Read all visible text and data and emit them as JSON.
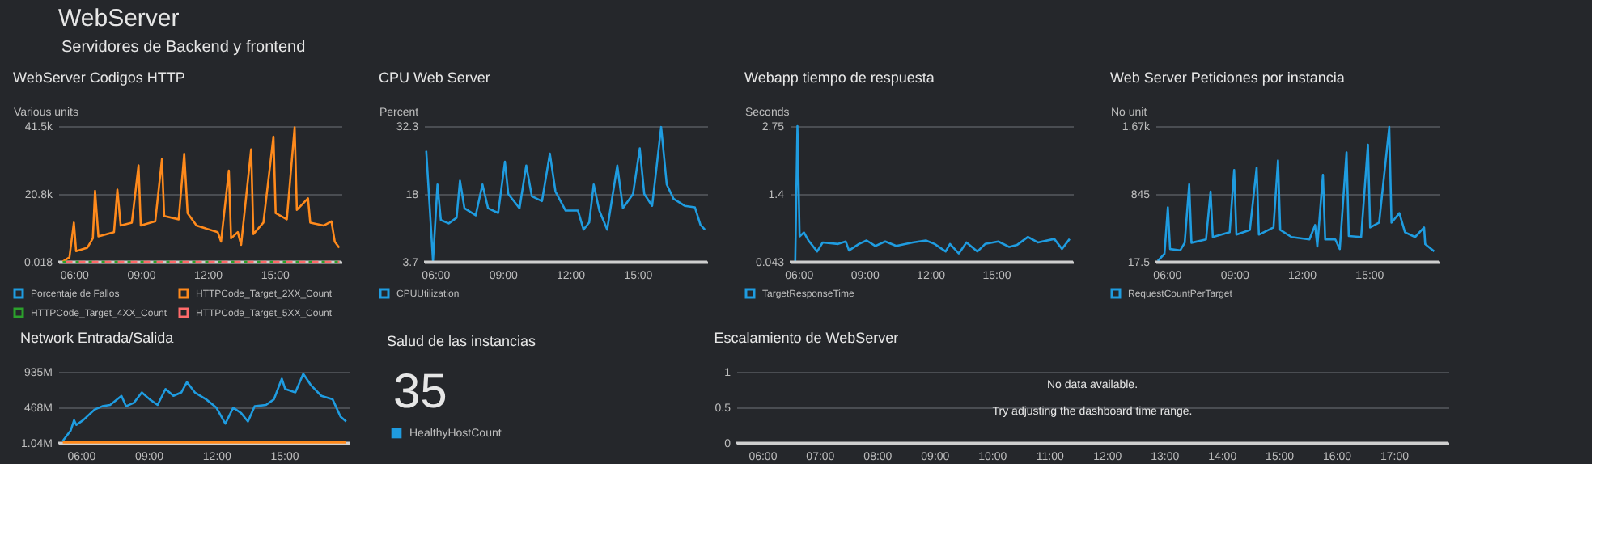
{
  "chart_data": [
    {
      "type": "other",
      "title": "WebServer",
      "subtitle": "Servidores de Backend y frontend"
    },
    {
      "type": "line",
      "title": "WebServer Codigos HTTP",
      "ylabel": "Various units",
      "legend": "bottom",
      "grid": "y",
      "xlim": [
        5.3,
        18.0
      ],
      "xticks": [
        {
          "value": 6,
          "label": "06:00"
        },
        {
          "value": 9,
          "label": "09:00"
        },
        {
          "value": 12,
          "label": "12:00"
        },
        {
          "value": 15,
          "label": "15:00"
        }
      ],
      "ylim": [
        0.018,
        41500
      ],
      "yticks": [
        0.018,
        {
          "value": 20800,
          "label": "20.8k"
        },
        {
          "value": 41500,
          "label": "41.5k"
        }
      ],
      "series": [
        {
          "name": "Porcentaje de Fallos",
          "color": "#1f9ce0"
        },
        {
          "name": "HTTPCode_Target_2XX_Count",
          "color": "#ff8a1c",
          "x": [
            5.5,
            5.8,
            6.0,
            6.1,
            6.6,
            6.85,
            6.95,
            7.1,
            7.8,
            7.95,
            8.1,
            8.6,
            8.9,
            9.0,
            9.65,
            9.95,
            10.05,
            10.7,
            10.95,
            11.1,
            11.5,
            12.45,
            12.6,
            12.95,
            13.05,
            13.35,
            13.5,
            13.95,
            14.05,
            14.5,
            14.95,
            15.05,
            15.55,
            15.9,
            16.0,
            16.5,
            16.6,
            17.2,
            17.55,
            17.7,
            17.9
          ],
          "values": [
            100,
            1400,
            12000,
            3300,
            4300,
            7200,
            21700,
            7800,
            9100,
            22100,
            11100,
            12000,
            29500,
            11100,
            12400,
            31400,
            14000,
            13000,
            33000,
            14900,
            11100,
            9100,
            6200,
            27900,
            7200,
            9100,
            5200,
            34400,
            8500,
            12000,
            38300,
            14900,
            13000,
            41100,
            15900,
            19400,
            12000,
            11100,
            12400,
            6200,
            4300
          ]
        },
        {
          "name": "HTTPCode_Target_4XX_Count",
          "color": "#2ca02c",
          "line_style": "dashed",
          "x": [
            5.5,
            17.9
          ],
          "values": [
            0.018,
            0.018
          ]
        },
        {
          "name": "HTTPCode_Target_5XX_Count",
          "color": "#ff6b6b",
          "line_style": "dashed",
          "x": [
            5.5,
            17.9
          ],
          "values": [
            0.018,
            0.018
          ]
        }
      ]
    },
    {
      "type": "line",
      "title": "CPU Web Server",
      "ylabel": "Percent",
      "legend": "bottom",
      "grid": "y",
      "xlim": [
        5.5,
        18.1
      ],
      "xticks": [
        {
          "value": 6,
          "label": "06:00"
        },
        {
          "value": 9,
          "label": "09:00"
        },
        {
          "value": 12,
          "label": "12:00"
        },
        {
          "value": 15,
          "label": "15:00"
        }
      ],
      "ylim": [
        3.7,
        32.3
      ],
      "yticks": [
        3.7,
        18,
        32.3
      ],
      "series": [
        {
          "name": "CPUUtilization",
          "color": "#1f9ce0",
          "x": [
            5.6,
            5.9,
            6.1,
            6.25,
            6.6,
            6.95,
            7.1,
            7.3,
            7.8,
            8.1,
            8.35,
            8.8,
            9.1,
            9.25,
            9.75,
            10.05,
            10.3,
            10.75,
            11.1,
            11.35,
            11.8,
            12.35,
            12.6,
            12.85,
            13.05,
            13.3,
            13.65,
            14.1,
            14.35,
            14.8,
            15.1,
            15.3,
            15.65,
            16.05,
            16.3,
            16.6,
            17.1,
            17.55,
            17.8,
            18.0
          ],
          "values": [
            27.1,
            3.9,
            20.0,
            12.5,
            11.8,
            13.0,
            20.8,
            15.0,
            13.5,
            20.0,
            15.0,
            14.0,
            24.8,
            18.0,
            15.0,
            24.0,
            17.5,
            16.5,
            26.5,
            18.5,
            14.5,
            14.5,
            10.5,
            12.0,
            20.0,
            14.5,
            10.5,
            24.0,
            15.0,
            18.0,
            27.6,
            18.0,
            15.5,
            32.1,
            20.0,
            17.0,
            15.5,
            15.2,
            11.5,
            10.5
          ]
        }
      ]
    },
    {
      "type": "line",
      "title": "Webapp tiempo de respuesta",
      "ylabel": "Seconds",
      "legend": "bottom",
      "grid": "y",
      "xlim": [
        5.6,
        18.5
      ],
      "xticks": [
        {
          "value": 6,
          "label": "06:00"
        },
        {
          "value": 9,
          "label": "09:00"
        },
        {
          "value": 12,
          "label": "12:00"
        },
        {
          "value": 15,
          "label": "15:00"
        }
      ],
      "ylim": [
        0.043,
        2.75
      ],
      "yticks": [
        0.043,
        1.4,
        2.75
      ],
      "series": [
        {
          "name": "TargetResponseTime",
          "color": "#1f9ce0",
          "x": [
            5.85,
            5.95,
            6.05,
            6.25,
            6.45,
            6.85,
            7.1,
            7.8,
            8.15,
            8.3,
            8.75,
            9.1,
            9.5,
            9.95,
            10.45,
            11.2,
            11.8,
            12.2,
            12.7,
            12.9,
            13.3,
            13.65,
            14.15,
            14.5,
            15.1,
            15.6,
            15.95,
            16.45,
            16.9,
            17.65,
            18.0,
            18.35
          ],
          "values": [
            0.043,
            2.75,
            0.55,
            0.63,
            0.47,
            0.25,
            0.43,
            0.4,
            0.45,
            0.27,
            0.4,
            0.47,
            0.36,
            0.45,
            0.36,
            0.43,
            0.47,
            0.4,
            0.25,
            0.4,
            0.21,
            0.43,
            0.25,
            0.4,
            0.45,
            0.34,
            0.38,
            0.54,
            0.43,
            0.5,
            0.3,
            0.5
          ]
        }
      ]
    },
    {
      "type": "line",
      "title": "Web Server Peticiones por instancia",
      "ylabel": "No unit",
      "legend": "bottom",
      "grid": "y",
      "xlim": [
        5.5,
        18.1
      ],
      "xticks": [
        {
          "value": 6,
          "label": "06:00"
        },
        {
          "value": 9,
          "label": "09:00"
        },
        {
          "value": 12,
          "label": "12:00"
        },
        {
          "value": 15,
          "label": "15:00"
        }
      ],
      "ylim": [
        17.5,
        1670
      ],
      "yticks": [
        17.5,
        845,
        {
          "value": 1670,
          "label": "1.67k"
        }
      ],
      "series": [
        {
          "name": "RequestCountPerTarget",
          "color": "#1f9ce0",
          "x": [
            5.6,
            5.9,
            6.05,
            6.15,
            6.6,
            6.8,
            7.0,
            7.1,
            7.75,
            7.95,
            8.05,
            8.8,
            9.0,
            9.1,
            9.7,
            10.0,
            10.1,
            10.75,
            10.95,
            11.05,
            11.55,
            12.35,
            12.6,
            12.7,
            12.95,
            13.05,
            13.5,
            13.7,
            14.0,
            14.1,
            14.65,
            14.95,
            15.05,
            15.45,
            15.9,
            16.0,
            16.35,
            16.6,
            17.05,
            17.45,
            17.5,
            17.9
          ],
          "values": [
            29,
            116,
            681,
            174,
            157,
            250,
            961,
            250,
            291,
            873,
            320,
            378,
            1135,
            349,
            407,
            1165,
            349,
            437,
            1252,
            407,
            320,
            291,
            466,
            204,
            1077,
            291,
            291,
            174,
            1351,
            332,
            320,
            1444,
            437,
            495,
            1659,
            495,
            611,
            378,
            320,
            437,
            233,
            145
          ]
        }
      ]
    },
    {
      "type": "line",
      "title": "Network Entrada/Salida",
      "grid": "y",
      "xlim": [
        5.0,
        17.9
      ],
      "xticks": [
        {
          "value": 6,
          "label": "06:00"
        },
        {
          "value": 9,
          "label": "09:00"
        },
        {
          "value": 12,
          "label": "12:00"
        },
        {
          "value": 15,
          "label": "15:00"
        }
      ],
      "ylim": [
        1040000.0,
        935000000.0
      ],
      "yticks": [
        {
          "value": 1040000.0,
          "label": "1.04M"
        },
        {
          "value": 468000000.0,
          "label": "468M"
        },
        {
          "value": 935000000.0,
          "label": "935M"
        }
      ],
      "series": [
        {
          "color": "#1f9ce0",
          "x": [
            5.2,
            5.55,
            5.7,
            5.8,
            6.1,
            6.6,
            6.95,
            7.3,
            7.8,
            8.0,
            8.35,
            8.7,
            9.05,
            9.4,
            9.75,
            10.1,
            10.45,
            10.7,
            11.05,
            11.55,
            12.0,
            12.4,
            12.75,
            13.1,
            13.4,
            13.7,
            14.2,
            14.55,
            14.9,
            15.05,
            15.5,
            15.85,
            16.2,
            16.65,
            17.15,
            17.5,
            17.75
          ],
          "values": [
            28000000,
            164000000,
            300000000,
            237000000,
            300000000,
            437000000,
            483000000,
            500000000,
            619000000,
            483000000,
            528000000,
            664000000,
            573000000,
            500000000,
            709000000,
            619000000,
            664000000,
            800000000,
            664000000,
            573000000,
            465000000,
            255000000,
            465000000,
            392000000,
            282000000,
            483000000,
            500000000,
            573000000,
            845000000,
            709000000,
            664000000,
            909000000,
            755000000,
            619000000,
            573000000,
            346000000,
            282000000
          ]
        },
        {
          "color": "#ff8a1c",
          "x": [
            5.2,
            17.75
          ],
          "values": [
            8000000,
            8000000
          ]
        }
      ]
    },
    {
      "type": "other",
      "title": "Salud de las instancias",
      "data_labels": true,
      "series": [
        {
          "name": "HealthyHostCount",
          "color": "#1f9ce0",
          "values": [
            35
          ]
        }
      ]
    },
    {
      "type": "line",
      "title": "Escalamiento de WebServer",
      "grid": "y",
      "xlim": [
        5.55,
        17.95
      ],
      "xticks": [
        {
          "value": 6,
          "label": "06:00"
        },
        {
          "value": 7,
          "label": "07:00"
        },
        {
          "value": 8,
          "label": "08:00"
        },
        {
          "value": 9,
          "label": "09:00"
        },
        {
          "value": 10,
          "label": "10:00"
        },
        {
          "value": 11,
          "label": "11:00"
        },
        {
          "value": 12,
          "label": "12:00"
        },
        {
          "value": 13,
          "label": "13:00"
        },
        {
          "value": 14,
          "label": "14:00"
        },
        {
          "value": 15,
          "label": "15:00"
        },
        {
          "value": 16,
          "label": "16:00"
        },
        {
          "value": 17,
          "label": "17:00"
        }
      ],
      "ylim": [
        0,
        1
      ],
      "yticks": [
        0,
        0.5,
        1
      ],
      "annotations": [
        "No data available.",
        "Try adjusting the dashboard time range."
      ]
    }
  ]
}
